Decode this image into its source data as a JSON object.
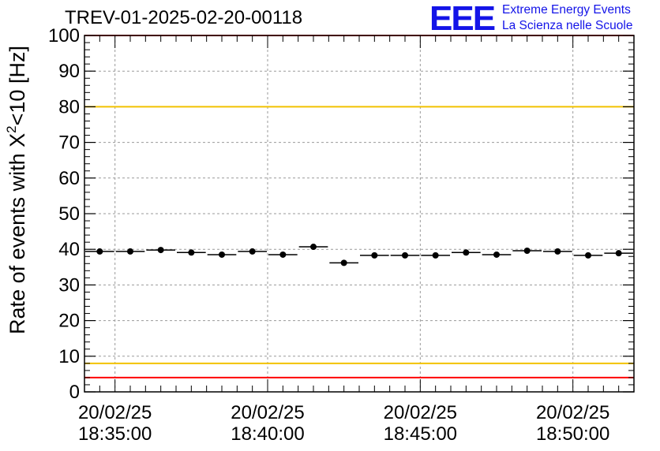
{
  "page": {
    "title": "TREV-01-2025-02-20-00118",
    "logo": {
      "mark": "EEE",
      "line1": "Extreme Energy Events",
      "line2": "La Scienza nelle Scuole",
      "color": "#1414e8"
    }
  },
  "chart_data": {
    "type": "scatter",
    "title": "TREV-01-2025-02-20-00118",
    "ylabel": "Rate of events with X",
    "ylabel_sup": "2",
    "ylabel_suffix": "<10 [Hz]",
    "xlabel": "",
    "ylim": [
      0,
      100
    ],
    "yticks": [
      0,
      10,
      20,
      30,
      40,
      50,
      60,
      70,
      80,
      90,
      100
    ],
    "x_unit": "minutes after 18:34:00",
    "xlim": [
      0,
      18
    ],
    "x_tick_labels": [
      {
        "x": 1,
        "date": "20/02/25",
        "time": "18:35:00"
      },
      {
        "x": 6,
        "date": "20/02/25",
        "time": "18:40:00"
      },
      {
        "x": 11,
        "date": "20/02/25",
        "time": "18:45:00"
      },
      {
        "x": 16,
        "date": "20/02/25",
        "time": "18:50:00"
      }
    ],
    "bin_width_minutes": 1,
    "series": [
      {
        "name": "rate",
        "x": [
          0.5,
          1.5,
          2.5,
          3.5,
          4.5,
          5.5,
          6.5,
          7.5,
          8.5,
          9.5,
          10.5,
          11.5,
          12.5,
          13.5,
          14.5,
          15.5,
          16.5,
          17.5
        ],
        "values": [
          39.4,
          39.4,
          39.8,
          39.1,
          38.5,
          39.4,
          38.5,
          40.7,
          36.2,
          38.3,
          38.3,
          38.3,
          39.1,
          38.5,
          39.6,
          39.4,
          38.3,
          38.9
        ]
      }
    ],
    "reference_lines": [
      {
        "name": "upper-red-limit",
        "y": 100,
        "color": "#ff0000"
      },
      {
        "name": "upper-yellow-limit",
        "y": 80,
        "color": "#f2c200"
      },
      {
        "name": "lower-yellow-limit",
        "y": 8,
        "color": "#f2c200"
      },
      {
        "name": "lower-red-limit",
        "y": 4,
        "color": "#ff0000"
      }
    ],
    "grid": true
  }
}
